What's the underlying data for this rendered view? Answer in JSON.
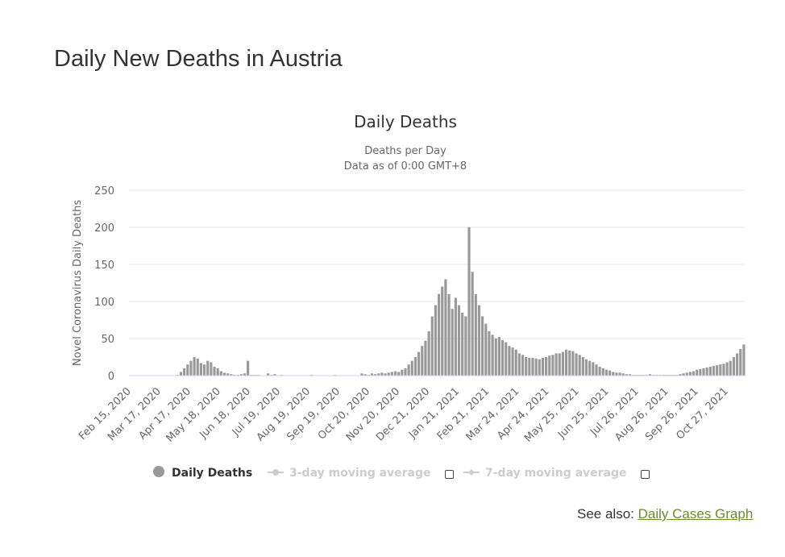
{
  "page": {
    "heading": "Daily New Deaths in Austria",
    "see_also_prefix": "See also:",
    "see_also_link": "Daily Cases Graph"
  },
  "colors": {
    "bar": "#999999",
    "grid": "#e6e6e6",
    "legend_inactive": "#cccccc",
    "link": "#6a8d2f"
  },
  "chart_data": {
    "type": "bar",
    "title": "Daily Deaths",
    "subtitle_lines": [
      "Deaths per Day",
      "Data as of 0:00 GMT+8"
    ],
    "ylabel": "Novel Coronavirus Daily Deaths",
    "xlabel": "",
    "ylim": [
      0,
      250
    ],
    "yticks": [
      0,
      50,
      100,
      150,
      200,
      250
    ],
    "xtick_labels": [
      "Feb 15, 2020",
      "Mar 17, 2020",
      "Apr 17, 2020",
      "May 18, 2020",
      "Jun 18, 2020",
      "Jul 19, 2020",
      "Aug 19, 2020",
      "Sep 19, 2020",
      "Oct 20, 2020",
      "Nov 20, 2020",
      "Dec 21, 2020",
      "Jan 21, 2021",
      "Feb 21, 2021",
      "Mar 24, 2021",
      "Apr 24, 2021",
      "May 25, 2021",
      "Jun 25, 2021",
      "Jul 26, 2021",
      "Aug 26, 2021",
      "Sep 26, 2021",
      "Oct 27, 2021"
    ],
    "x_start": "Feb 15, 2020",
    "days_per_value": 3,
    "series": [
      {
        "name": "Daily Deaths",
        "values": [
          0,
          0,
          0,
          0,
          0,
          0,
          0,
          0,
          0,
          0,
          0,
          0,
          0,
          0,
          1,
          5,
          10,
          15,
          20,
          25,
          23,
          17,
          15,
          20,
          18,
          12,
          10,
          6,
          4,
          3,
          2,
          1,
          1,
          2,
          3,
          20,
          1,
          1,
          1,
          0,
          0,
          3,
          1,
          2,
          0,
          1,
          0,
          0,
          0,
          0,
          0,
          0,
          0,
          0,
          1,
          0,
          0,
          0,
          0,
          0,
          0,
          1,
          0,
          0,
          0,
          0,
          0,
          0,
          0,
          3,
          2,
          1,
          3,
          2,
          3,
          4,
          3,
          4,
          5,
          6,
          5,
          8,
          10,
          15,
          20,
          25,
          32,
          40,
          47,
          60,
          80,
          95,
          110,
          120,
          130,
          110,
          90,
          105,
          95,
          85,
          80,
          200,
          140,
          110,
          95,
          80,
          70,
          60,
          55,
          50,
          52,
          48,
          45,
          40,
          38,
          35,
          30,
          28,
          25,
          24,
          24,
          23,
          22,
          24,
          25,
          27,
          28,
          30,
          30,
          32,
          35,
          34,
          33,
          30,
          28,
          25,
          22,
          20,
          18,
          15,
          12,
          10,
          8,
          7,
          5,
          4,
          4,
          3,
          2,
          2,
          1,
          1,
          1,
          1,
          1,
          2,
          1,
          1,
          1,
          1,
          1,
          1,
          1,
          1,
          2,
          3,
          4,
          5,
          6,
          8,
          9,
          10,
          11,
          12,
          13,
          14,
          15,
          16,
          18,
          20,
          25,
          30,
          36,
          42
        ],
        "color": "#999999"
      },
      {
        "name": "3-day moving average",
        "visible": false,
        "color": "#cccccc"
      },
      {
        "name": "7-day moving average",
        "visible": false,
        "color": "#cccccc"
      }
    ],
    "legend_position": "bottom-center"
  }
}
